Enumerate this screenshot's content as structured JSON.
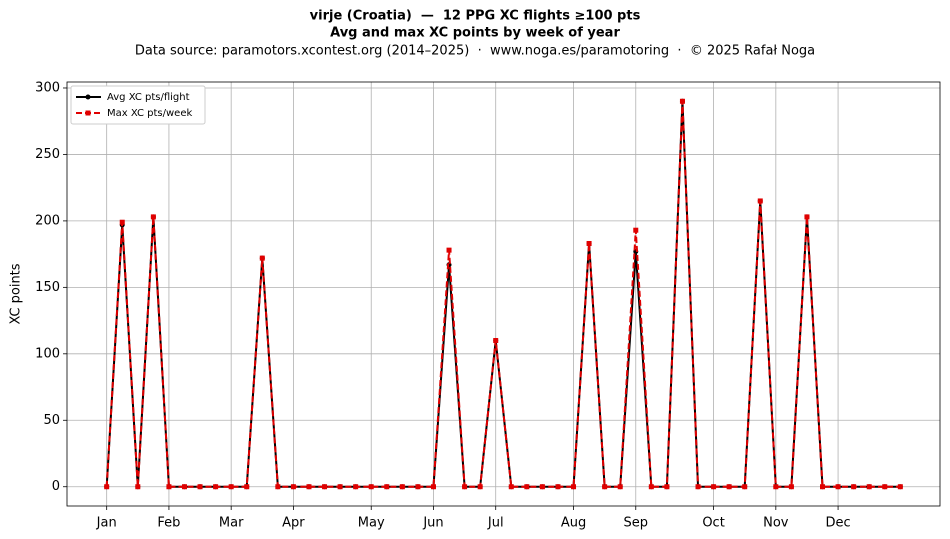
{
  "chart_data": {
    "type": "line",
    "title": "virje (Croatia)  —  12 PPG XC flights ≥100 pts",
    "subtitle": "Avg and max XC points by week of year",
    "source": "Data source: paramotors.xcontest.org (2014–2025)  ·  www.noga.es/paramotoring  ·  © 2025 Rafał Noga",
    "ylabel": "XC points",
    "x": [
      1,
      2,
      3,
      4,
      5,
      6,
      7,
      8,
      9,
      10,
      11,
      12,
      13,
      14,
      15,
      16,
      17,
      18,
      19,
      20,
      21,
      22,
      23,
      24,
      25,
      26,
      27,
      28,
      29,
      30,
      31,
      32,
      33,
      34,
      35,
      36,
      37,
      38,
      39,
      40,
      41,
      42,
      43,
      44,
      45,
      46,
      47,
      48,
      49,
      50,
      51,
      52
    ],
    "series": [
      {
        "name": "Avg XC pts/flight",
        "color": "#000000",
        "values": [
          0,
          197,
          0,
          203,
          0,
          0,
          0,
          0,
          0,
          0,
          172,
          0,
          0,
          0,
          0,
          0,
          0,
          0,
          0,
          0,
          0,
          0,
          167,
          0,
          0,
          110,
          0,
          0,
          0,
          0,
          0,
          183,
          0,
          0,
          177,
          0,
          0,
          290,
          0,
          0,
          0,
          0,
          215,
          0,
          0,
          203,
          0,
          0,
          0,
          0,
          0,
          0
        ]
      },
      {
        "name": "Max XC pts/week",
        "color": "#e00000",
        "values": [
          0,
          199,
          0,
          203,
          0,
          0,
          0,
          0,
          0,
          0,
          172,
          0,
          0,
          0,
          0,
          0,
          0,
          0,
          0,
          0,
          0,
          0,
          178,
          0,
          0,
          110,
          0,
          0,
          0,
          0,
          0,
          183,
          0,
          0,
          193,
          0,
          0,
          290,
          0,
          0,
          0,
          0,
          215,
          0,
          0,
          203,
          0,
          0,
          0,
          0,
          0,
          0
        ]
      }
    ],
    "xlim": [
      -1.55,
      54.55
    ],
    "ylim": [
      -14.5,
      304.5
    ],
    "xticks": [
      {
        "value": 1,
        "label": "Jan"
      },
      {
        "value": 5,
        "label": "Feb"
      },
      {
        "value": 9,
        "label": "Mar"
      },
      {
        "value": 13,
        "label": "Apr"
      },
      {
        "value": 18,
        "label": "May"
      },
      {
        "value": 22,
        "label": "Jun"
      },
      {
        "value": 26,
        "label": "Jul"
      },
      {
        "value": 31,
        "label": "Aug"
      },
      {
        "value": 35,
        "label": "Sep"
      },
      {
        "value": 40,
        "label": "Oct"
      },
      {
        "value": 44,
        "label": "Nov"
      },
      {
        "value": 48,
        "label": "Dec"
      }
    ],
    "yticks": [
      0,
      50,
      100,
      150,
      200,
      250,
      300
    ],
    "grid": true,
    "legend": "upper-left"
  }
}
